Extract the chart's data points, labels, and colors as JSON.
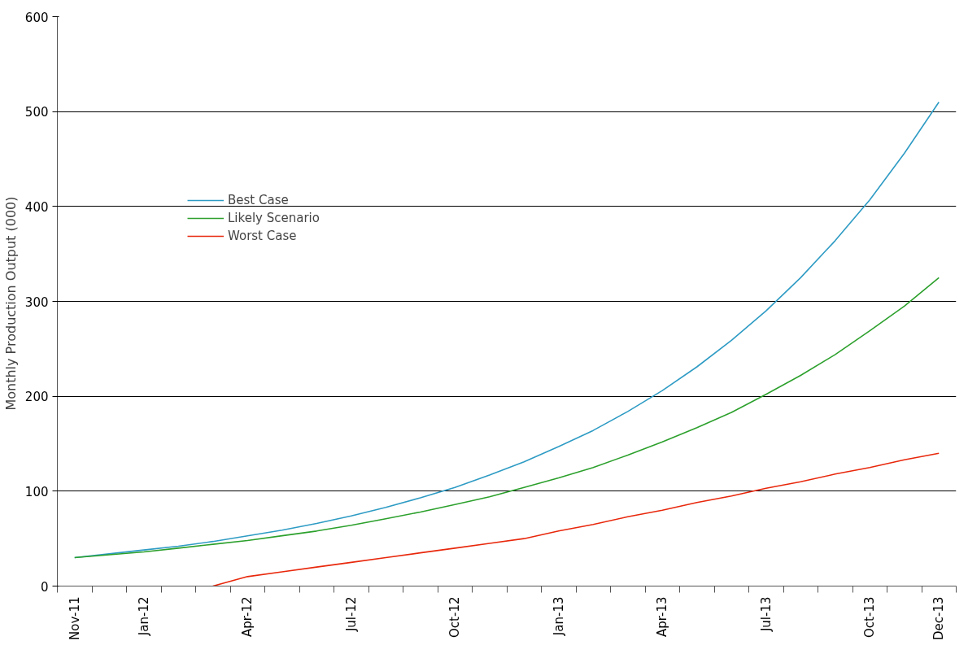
{
  "chart_data": {
    "type": "line",
    "ylabel": "Monthly Production Output  (000)",
    "categories": [
      "Nov-11",
      null,
      "Jan-12",
      null,
      null,
      "Apr-12",
      null,
      null,
      "Jul-12",
      null,
      null,
      "Oct-12",
      null,
      null,
      "Jan-13",
      null,
      null,
      "Apr-13",
      null,
      null,
      "Jul-13",
      null,
      null,
      "Oct-13",
      null,
      "Dec-13"
    ],
    "series": [
      {
        "name": "Best Case",
        "color": "#2e9bc4",
        "values": [
          30,
          34,
          38,
          42,
          47,
          53,
          59,
          66,
          74,
          83,
          93,
          104,
          117,
          131,
          147,
          164,
          184,
          206,
          231,
          259,
          290,
          325,
          364,
          407,
          456,
          510
        ]
      },
      {
        "name": "Likely Scenario",
        "color": "#2ca02c",
        "values": [
          30,
          33,
          36,
          40,
          44,
          48,
          53,
          58,
          64,
          71,
          78,
          86,
          94,
          104,
          114,
          125,
          138,
          152,
          167,
          183,
          202,
          222,
          244,
          269,
          295,
          325
        ]
      },
      {
        "name": "Worst Case",
        "color": "#e8280c",
        "values": [
          null,
          null,
          null,
          null,
          0,
          10,
          15,
          20,
          25,
          30,
          35,
          40,
          45,
          50,
          58,
          65,
          73,
          80,
          88,
          95,
          103,
          110,
          118,
          125,
          133,
          140
        ]
      }
    ],
    "ylim": [
      0,
      600
    ],
    "yticks": [
      0,
      100,
      200,
      300,
      400,
      500,
      600
    ],
    "grid": "y",
    "legend": "top left",
    "marker": "none",
    "line_style": "solid"
  }
}
